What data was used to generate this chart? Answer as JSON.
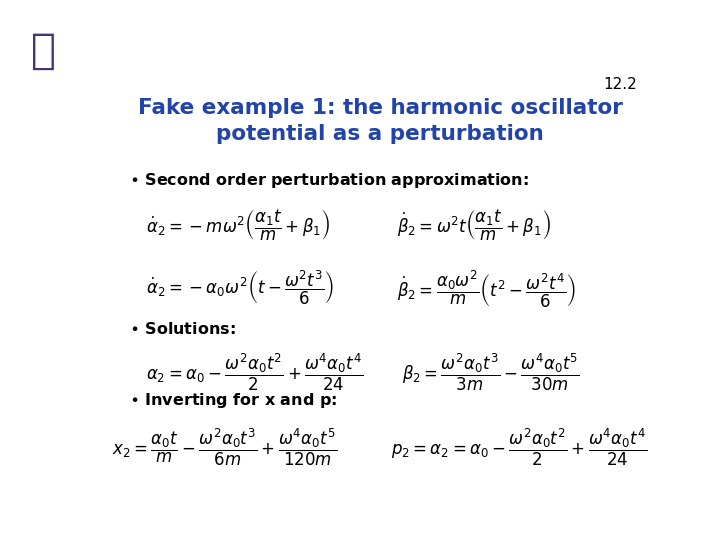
{
  "slide_number": "12.2",
  "title_line1": "Fake example 1: the harmonic oscillator",
  "title_line2": "potential as a perturbation",
  "title_color": "#2244AA",
  "background_color": "#FFFFFF",
  "bullet1": "Second order perturbation approximation:",
  "bullet2": "Solutions:",
  "bullet3": "Inverting for x and p:",
  "gecko_color": "#443377",
  "text_color": "#000000",
  "bullet_color": "#000000",
  "slide_num_color": "#000000"
}
